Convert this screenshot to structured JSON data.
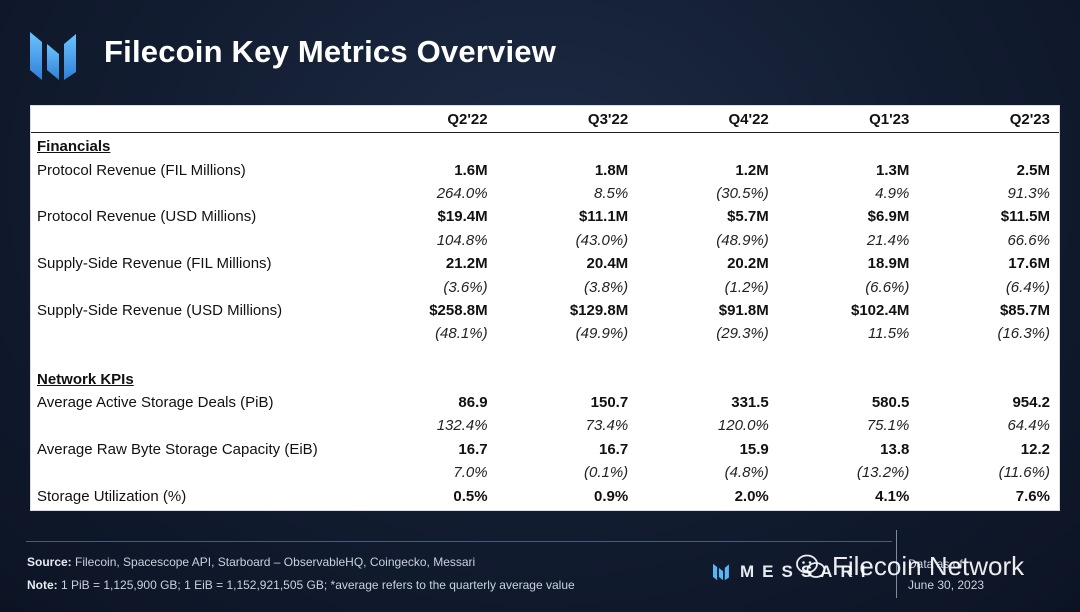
{
  "header": {
    "title": "Filecoin Key Metrics Overview"
  },
  "table": {
    "columns": [
      "Q2'22",
      "Q3'22",
      "Q4'22",
      "Q1'23",
      "Q2'23"
    ],
    "sections": [
      {
        "title": "Financials",
        "rows": [
          {
            "label": "Protocol Revenue (FIL Millions)",
            "values": [
              "1.6M",
              "1.8M",
              "1.2M",
              "1.3M",
              "2.5M"
            ],
            "growth": [
              "264.0%",
              "8.5%",
              "(30.5%)",
              "4.9%",
              "91.3%"
            ]
          },
          {
            "label": "Protocol Revenue (USD Millions)",
            "values": [
              "$19.4M",
              "$11.1M",
              "$5.7M",
              "$6.9M",
              "$11.5M"
            ],
            "growth": [
              "104.8%",
              "(43.0%)",
              "(48.9%)",
              "21.4%",
              "66.6%"
            ]
          },
          {
            "label": "Supply-Side Revenue (FIL Millions)",
            "values": [
              "21.2M",
              "20.4M",
              "20.2M",
              "18.9M",
              "17.6M"
            ],
            "growth": [
              "(3.6%)",
              "(3.8%)",
              "(1.2%)",
              "(6.6%)",
              "(6.4%)"
            ]
          },
          {
            "label": "Supply-Side Revenue (USD Millions)",
            "values": [
              "$258.8M",
              "$129.8M",
              "$91.8M",
              "$102.4M",
              "$85.7M"
            ],
            "growth": [
              "(48.1%)",
              "(49.9%)",
              "(29.3%)",
              "11.5%",
              "(16.3%)"
            ]
          }
        ]
      },
      {
        "title": "Network KPIs",
        "rows": [
          {
            "label": "Average Active Storage Deals (PiB)",
            "values": [
              "86.9",
              "150.7",
              "331.5",
              "580.5",
              "954.2"
            ],
            "growth": [
              "132.4%",
              "73.4%",
              "120.0%",
              "75.1%",
              "64.4%"
            ]
          },
          {
            "label": "Average Raw Byte Storage Capacity (EiB)",
            "values": [
              "16.7",
              "16.7",
              "15.9",
              "13.8",
              "12.2"
            ],
            "growth": [
              "7.0%",
              "(0.1%)",
              "(4.8%)",
              "(13.2%)",
              "(11.6%)"
            ]
          },
          {
            "label": "Storage Utilization (%)",
            "values": [
              "0.5%",
              "0.9%",
              "2.0%",
              "4.1%",
              "7.6%"
            ],
            "growth": []
          }
        ]
      }
    ]
  },
  "footer": {
    "source_label": "Source:",
    "source_text": " Filecoin, Spacescope API, Starboard – ObservableHQ, Coingecko, Messari",
    "note_label": "Note:",
    "note_text": " 1 PiB = 1,125,900 GB; 1 EiB = 1,152,921,505 GB; *average refers to the quarterly average value",
    "brand": "MESSARI",
    "asof_label": "Data as of",
    "asof_date": "June 30, 2023"
  },
  "watermark": {
    "text": "Filecoin Network",
    "icon": "wechat-icon"
  },
  "colors": {
    "background": "#121c30",
    "panel": "#ffffff",
    "accent": "#4aa3e8"
  }
}
